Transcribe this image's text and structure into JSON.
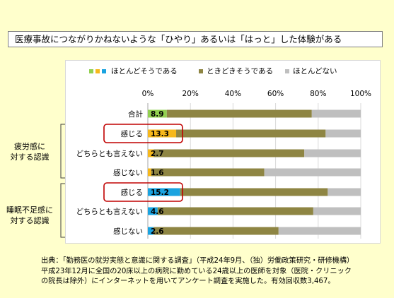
{
  "title": "医療事故につながりかねないような「ひやり」あるいは「はっと」した体験がある",
  "chart_data": {
    "type": "bar",
    "orientation": "horizontal-stacked-100",
    "xlim": [
      0,
      100
    ],
    "ticks": [
      "0%",
      "20%",
      "40%",
      "60%",
      "80%",
      "100%"
    ],
    "legend": [
      {
        "name": "ほとんどそうである",
        "colors": [
          "#92d050",
          "#f6b81c",
          "#1aa3e0"
        ]
      },
      {
        "name": "ときどきそうである",
        "color": "#8e8543"
      },
      {
        "name": "ほとんどない",
        "color": "#bfbfbf"
      }
    ],
    "categories": [
      "合計",
      "感じる",
      "どちらとも言えない",
      "感じない",
      "感じる",
      "どちらとも言えない",
      "感じない"
    ],
    "groups": [
      {
        "label_lines": [
          "疲労感に",
          "対する認識"
        ],
        "rows": [
          1,
          3
        ]
      },
      {
        "label_lines": [
          "睡眠不足感に",
          "対する認識"
        ],
        "rows": [
          4,
          6
        ]
      }
    ],
    "highlighted_rows": [
      1,
      4
    ],
    "series": [
      {
        "name": "ほとんどそうである",
        "values": [
          8.9,
          13.3,
          2.7,
          1.6,
          15.2,
          4.6,
          2.6
        ],
        "colors": [
          "#92d050",
          "#f6b81c",
          "#f6b81c",
          "#f6b81c",
          "#1aa3e0",
          "#1aa3e0",
          "#1aa3e0"
        ],
        "labels": [
          "8.9",
          "13.3",
          "2.7",
          "1.6",
          "15.2",
          "4.6",
          "2.6"
        ]
      },
      {
        "name": "ときどきそうである",
        "values": [
          68.1,
          70.2,
          70.8,
          53.1,
          69.3,
          73.1,
          58.8
        ],
        "color": "#8e8543"
      },
      {
        "name": "ほとんどない",
        "values": [
          23.0,
          16.5,
          26.5,
          45.3,
          15.5,
          22.3,
          38.6
        ],
        "color": "#bfbfbf"
      }
    ]
  },
  "source": {
    "line1": "出典：「勤務医の就労実態と意識に関する調査」（平成24年9月、（独）労働政策研究・研修機構）",
    "line2": "平成23年12月に全国の20床以上の病院に勤めている24歳以上の医師を対象（医院・クリニック",
    "line3": "の院長は除外）にインターネットを用いてアンケート調査を実施した。有効回収数3,467。"
  }
}
